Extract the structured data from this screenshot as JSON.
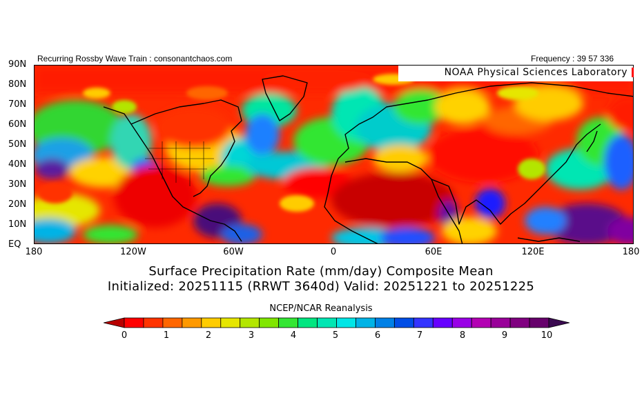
{
  "header": {
    "left": "Recurring Rossby Wave Train : consonantchaos.com",
    "right": "Frequency : 39 57 336"
  },
  "map": {
    "credit": "NOAA Physical Sciences Laboratory",
    "lat_labels": [
      "90N",
      "80N",
      "70N",
      "60N",
      "50N",
      "40N",
      "30N",
      "20N",
      "10N",
      "EQ"
    ],
    "lon_labels": [
      "180",
      "120W",
      "60W",
      "0",
      "60E",
      "120E",
      "180"
    ]
  },
  "title": {
    "line1": "Surface Precipitation Rate (mm/day) Composite Mean",
    "line2": "Initialized: 20251115 (RRWT 3640d) Valid: 20251221 to 20251225",
    "source": "NCEP/NCAR Reanalysis"
  },
  "colorbar": {
    "labels": [
      "0",
      "1",
      "2",
      "3",
      "4",
      "5",
      "6",
      "7",
      "8",
      "9",
      "10"
    ],
    "low_color": "#b80000",
    "high_color": "#3a0a50",
    "colors": [
      "#ff0000",
      "#ff3300",
      "#ff6600",
      "#ff9900",
      "#ffcc00",
      "#e6e600",
      "#b3e600",
      "#80e600",
      "#33e633",
      "#00e680",
      "#00e6b3",
      "#00e6e6",
      "#00b3e6",
      "#0080e6",
      "#004de6",
      "#3333ff",
      "#6600ff",
      "#9900e6",
      "#b300b3",
      "#990099",
      "#800080",
      "#66006b"
    ]
  },
  "palette_note_colors": {
    "hot": "#cc0000",
    "warm": "#ff3300",
    "mid": "#ffcc00",
    "green": "#33cc33",
    "cool": "#00cccc",
    "blue": "#0066ff",
    "purple": "#660099"
  }
}
